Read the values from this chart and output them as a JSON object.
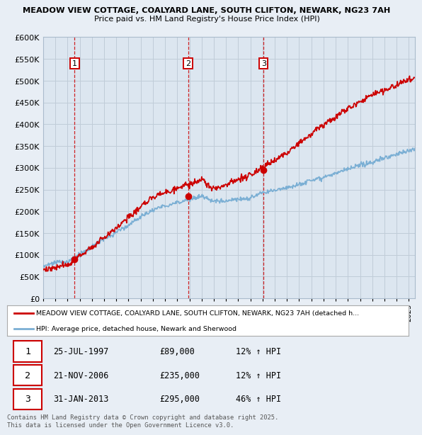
{
  "title1": "MEADOW VIEW COTTAGE, COALYARD LANE, SOUTH CLIFTON, NEWARK, NG23 7AH",
  "title2": "Price paid vs. HM Land Registry's House Price Index (HPI)",
  "ylim": [
    0,
    600000
  ],
  "yticks": [
    0,
    50000,
    100000,
    150000,
    200000,
    250000,
    300000,
    350000,
    400000,
    450000,
    500000,
    550000,
    600000
  ],
  "bg_color": "#e8eef5",
  "plot_bg_color": "#dce6f0",
  "grid_color": "#c0ccd8",
  "red_color": "#cc0000",
  "blue_color": "#7bafd4",
  "purchase_times": [
    1997.57,
    2006.89,
    2013.08
  ],
  "purchase_prices": [
    89000,
    235000,
    295000
  ],
  "purchase_labels": [
    "1",
    "2",
    "3"
  ],
  "legend_line1": "MEADOW VIEW COTTAGE, COALYARD LANE, SOUTH CLIFTON, NEWARK, NG23 7AH (detached h...",
  "legend_line2": "HPI: Average price, detached house, Newark and Sherwood",
  "table_rows": [
    {
      "num": "1",
      "date": "25-JUL-1997",
      "price": "£89,000",
      "hpi": "12% ↑ HPI"
    },
    {
      "num": "2",
      "date": "21-NOV-2006",
      "price": "£235,000",
      "hpi": "12% ↑ HPI"
    },
    {
      "num": "3",
      "date": "31-JAN-2013",
      "price": "£295,000",
      "hpi": "46% ↑ HPI"
    }
  ],
  "footer": "Contains HM Land Registry data © Crown copyright and database right 2025.\nThis data is licensed under the Open Government Licence v3.0.",
  "xmin": 1995.0,
  "xmax": 2025.5
}
